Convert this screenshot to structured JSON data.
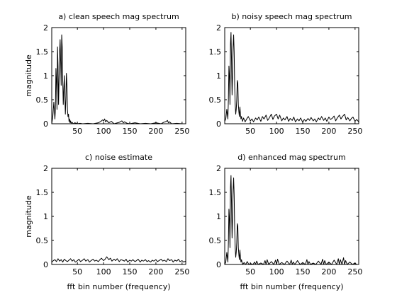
{
  "chart_data": [
    {
      "type": "line",
      "title": "a) clean speech mag spectrum",
      "xlabel": "",
      "ylabel": "magnitude",
      "xlim": [
        1,
        257
      ],
      "ylim": [
        0,
        2
      ],
      "xticks": [
        50,
        100,
        150,
        200,
        250
      ],
      "yticks": [
        0,
        0.5,
        1,
        1.5,
        2
      ],
      "xtick_labels": [
        "50",
        "100",
        "150",
        "200",
        "250"
      ],
      "ytick_labels": [
        "0",
        "0.5",
        "1",
        "1.5",
        "2"
      ],
      "grid": false,
      "series": [
        {
          "x": [
            1,
            3,
            5,
            7,
            8,
            9,
            10,
            11,
            12,
            13,
            14,
            15,
            16,
            17,
            18,
            19,
            20,
            21,
            22,
            23,
            24,
            25,
            26,
            27,
            28,
            29,
            30,
            31,
            32,
            33,
            34,
            35,
            36,
            37,
            38,
            40,
            42,
            45,
            50,
            55,
            60,
            70,
            80,
            90,
            95,
            98,
            100,
            102,
            104,
            106,
            110,
            115,
            120,
            130,
            135,
            138,
            140,
            145,
            150,
            160,
            170,
            180,
            190,
            200,
            210,
            215,
            220,
            222,
            224,
            226,
            230,
            240,
            250,
            257
          ],
          "y": [
            0,
            0.15,
            0.45,
            0.1,
            0.3,
            1.15,
            0.9,
            0.3,
            1.6,
            1.2,
            0.4,
            0.9,
            1.5,
            1.75,
            1.3,
            0.8,
            1.85,
            1.6,
            0.9,
            0.4,
            0.7,
            1.0,
            0.6,
            0.2,
            0.5,
            1.05,
            0.8,
            0.3,
            0.15,
            0.2,
            0.05,
            0.1,
            0.02,
            0.06,
            0.01,
            0.03,
            0,
            0.02,
            0,
            0.01,
            0,
            0.01,
            0,
            0.02,
            0.05,
            0.08,
            0.06,
            0.1,
            0.04,
            0.07,
            0.02,
            0.05,
            0,
            0.03,
            0.06,
            0.02,
            0.04,
            0.01,
            0,
            0.02,
            0,
            0.01,
            0,
            0.02,
            0,
            0.03,
            0.05,
            0.07,
            0.02,
            0.04,
            0,
            0.01,
            0,
            0
          ]
        }
      ]
    },
    {
      "type": "line",
      "title": "b) noisy speech mag spectrum",
      "xlabel": "",
      "ylabel": "",
      "xlim": [
        1,
        257
      ],
      "ylim": [
        0,
        2
      ],
      "xticks": [
        50,
        100,
        150,
        200,
        250
      ],
      "yticks": [
        0,
        0.5,
        1,
        1.5,
        2
      ],
      "xtick_labels": [
        "50",
        "100",
        "150",
        "200",
        "250"
      ],
      "ytick_labels": [
        "0",
        "0.5",
        "1",
        "1.5",
        "2"
      ],
      "grid": false,
      "series": [
        {
          "x": [
            1,
            3,
            5,
            7,
            8,
            9,
            10,
            11,
            12,
            13,
            14,
            15,
            16,
            17,
            18,
            19,
            20,
            21,
            22,
            23,
            24,
            25,
            26,
            27,
            28,
            29,
            30,
            31,
            32,
            33,
            35,
            37,
            40,
            43,
            46,
            50,
            53,
            56,
            60,
            63,
            66,
            70,
            73,
            76,
            80,
            83,
            86,
            90,
            93,
            96,
            100,
            103,
            106,
            110,
            113,
            116,
            120,
            123,
            126,
            130,
            133,
            136,
            140,
            143,
            146,
            150,
            153,
            156,
            160,
            163,
            166,
            170,
            173,
            176,
            180,
            183,
            186,
            190,
            193,
            196,
            200,
            203,
            206,
            210,
            213,
            216,
            220,
            223,
            226,
            230,
            233,
            236,
            240,
            243,
            246,
            250,
            253,
            257
          ],
          "y": [
            0.05,
            0.1,
            0.3,
            0.1,
            0.5,
            1.2,
            1.0,
            0.4,
            1.65,
            1.9,
            1.3,
            0.6,
            1.0,
            1.6,
            1.85,
            1.5,
            0.8,
            0.4,
            0.2,
            0.3,
            0.5,
            0.9,
            0.85,
            0.4,
            0.25,
            0.15,
            0.35,
            0.2,
            0.1,
            0.15,
            0.05,
            0.12,
            0.04,
            0.1,
            0.15,
            0.06,
            0.1,
            0.04,
            0.12,
            0.08,
            0.14,
            0.05,
            0.15,
            0.1,
            0.18,
            0.07,
            0.12,
            0.2,
            0.09,
            0.16,
            0.2,
            0.1,
            0.18,
            0.06,
            0.12,
            0.08,
            0.15,
            0.05,
            0.11,
            0.07,
            0.14,
            0.04,
            0.1,
            0.06,
            0.12,
            0.03,
            0.09,
            0.05,
            0.11,
            0.07,
            0.13,
            0.06,
            0.1,
            0.04,
            0.12,
            0.08,
            0.15,
            0.07,
            0.12,
            0.05,
            0.14,
            0.09,
            0.11,
            0.16,
            0.06,
            0.12,
            0.18,
            0.1,
            0.15,
            0.2,
            0.08,
            0.13,
            0.06,
            0.11,
            0.14,
            0.05,
            0.09,
            0.04
          ]
        }
      ]
    },
    {
      "type": "line",
      "title": "c) noise estimate",
      "xlabel": "fft bin number (frequency)",
      "ylabel": "magnitude",
      "xlim": [
        1,
        257
      ],
      "ylim": [
        0,
        2
      ],
      "xticks": [
        50,
        100,
        150,
        200,
        250
      ],
      "yticks": [
        0,
        0.5,
        1,
        1.5,
        2
      ],
      "xtick_labels": [
        "50",
        "100",
        "150",
        "200",
        "250"
      ],
      "ytick_labels": [
        "0",
        "0.5",
        "1",
        "1.5",
        "2"
      ],
      "grid": false,
      "series": [
        {
          "x": [
            1,
            4,
            7,
            10,
            13,
            16,
            19,
            22,
            25,
            28,
            31,
            34,
            37,
            40,
            43,
            46,
            50,
            53,
            56,
            60,
            63,
            66,
            70,
            73,
            76,
            80,
            83,
            86,
            90,
            93,
            96,
            100,
            103,
            106,
            110,
            113,
            116,
            120,
            123,
            126,
            130,
            133,
            136,
            140,
            143,
            146,
            150,
            153,
            156,
            160,
            163,
            166,
            170,
            173,
            176,
            180,
            183,
            186,
            190,
            193,
            196,
            200,
            203,
            206,
            210,
            213,
            216,
            220,
            223,
            226,
            230,
            233,
            236,
            240,
            243,
            246,
            250,
            253,
            257
          ],
          "y": [
            0.05,
            0.08,
            0.1,
            0.06,
            0.12,
            0.07,
            0.1,
            0.05,
            0.11,
            0.08,
            0.06,
            0.09,
            0.12,
            0.07,
            0.1,
            0.05,
            0.08,
            0.11,
            0.06,
            0.09,
            0.12,
            0.07,
            0.1,
            0.05,
            0.08,
            0.11,
            0.07,
            0.09,
            0.06,
            0.1,
            0.13,
            0.08,
            0.11,
            0.16,
            0.1,
            0.13,
            0.07,
            0.11,
            0.08,
            0.12,
            0.06,
            0.1,
            0.09,
            0.07,
            0.11,
            0.05,
            0.09,
            0.07,
            0.1,
            0.06,
            0.08,
            0.11,
            0.05,
            0.09,
            0.07,
            0.1,
            0.06,
            0.08,
            0.05,
            0.09,
            0.07,
            0.1,
            0.06,
            0.08,
            0.11,
            0.07,
            0.09,
            0.06,
            0.12,
            0.08,
            0.1,
            0.05,
            0.09,
            0.07,
            0.11,
            0.06,
            0.08,
            0.05,
            0.07
          ]
        }
      ]
    },
    {
      "type": "line",
      "title": "d) enhanced mag spectrum",
      "xlabel": "fft bin number (frequency)",
      "ylabel": "",
      "xlim": [
        1,
        257
      ],
      "ylim": [
        0,
        2
      ],
      "xticks": [
        50,
        100,
        150,
        200,
        250
      ],
      "yticks": [
        0,
        0.5,
        1,
        1.5,
        2
      ],
      "xtick_labels": [
        "50",
        "100",
        "150",
        "200",
        "250"
      ],
      "ytick_labels": [
        "0",
        "0.5",
        "1",
        "1.5",
        "2"
      ],
      "grid": false,
      "series": [
        {
          "x": [
            1,
            3,
            5,
            7,
            8,
            9,
            10,
            11,
            12,
            13,
            14,
            15,
            16,
            17,
            18,
            19,
            20,
            21,
            22,
            23,
            24,
            25,
            26,
            27,
            28,
            29,
            30,
            31,
            32,
            33,
            35,
            38,
            41,
            44,
            47,
            50,
            55,
            58,
            60,
            62,
            65,
            70,
            75,
            78,
            80,
            82,
            85,
            90,
            95,
            98,
            100,
            102,
            105,
            110,
            115,
            120,
            125,
            128,
            130,
            132,
            135,
            140,
            145,
            150,
            155,
            158,
            160,
            162,
            165,
            170,
            175,
            180,
            185,
            188,
            190,
            192,
            195,
            200,
            205,
            210,
            215,
            218,
            220,
            222,
            225,
            228,
            230,
            232,
            235,
            240,
            245,
            250,
            253,
            257
          ],
          "y": [
            0,
            0.05,
            0.25,
            0.05,
            0.45,
            1.15,
            0.95,
            0.35,
            1.6,
            1.85,
            1.25,
            0.55,
            0.95,
            1.55,
            1.8,
            1.45,
            0.75,
            0.35,
            0.15,
            0.25,
            0.45,
            0.85,
            0.8,
            0.35,
            0.2,
            0.1,
            0.3,
            0.15,
            0.05,
            0.1,
            0,
            0.04,
            0,
            0.06,
            0,
            0.02,
            0,
            0.05,
            0,
            0.07,
            0,
            0.03,
            0,
            0.08,
            0,
            0.1,
            0,
            0.06,
            0,
            0.09,
            0,
            0.11,
            0,
            0.04,
            0,
            0.07,
            0,
            0.09,
            0,
            0.05,
            0,
            0.08,
            0,
            0.04,
            0,
            0.1,
            0,
            0.06,
            0,
            0.03,
            0,
            0.07,
            0,
            0.11,
            0,
            0.08,
            0,
            0.05,
            0,
            0.09,
            0,
            0.12,
            0,
            0.1,
            0,
            0.14,
            0,
            0.08,
            0,
            0.05,
            0,
            0.03,
            0,
            0
          ]
        }
      ]
    }
  ]
}
